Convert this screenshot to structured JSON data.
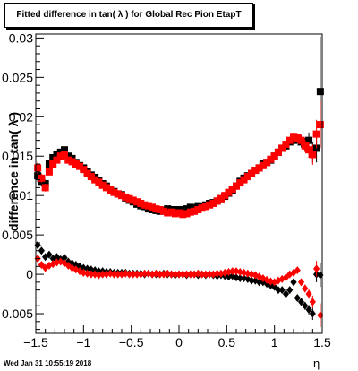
{
  "title": "Fitted difference in tan( λ ) for Global Rec Pion EtapT",
  "footer": "Wed Jan 31 10:55:19 2018",
  "chart_data": {
    "type": "scatter",
    "title": "Fitted difference in tan( λ ) for Global Rec Pion EtapT",
    "xlabel": "η",
    "ylabel": "difference in tan( λ )",
    "xlim": [
      -1.5,
      1.5
    ],
    "ylim": [
      -0.0075,
      0.0305
    ],
    "x_ticks": [
      -1.5,
      -1,
      -0.5,
      0,
      0.5,
      1,
      1.5
    ],
    "x_tick_labels": [
      "−1.5",
      "−1",
      "−0.5",
      "0",
      "0.5",
      "1",
      "1.5"
    ],
    "y_ticks": [
      -0.005,
      0,
      0.005,
      0.01,
      0.015,
      0.02,
      0.025,
      0.03
    ],
    "y_tick_labels": [
      "0.005",
      "0",
      "0.005",
      "0.01",
      "0.015",
      "0.02",
      "0.025",
      "0.03"
    ],
    "series": [
      {
        "color": "#000000",
        "marker": "square",
        "x": [
          -1.48,
          -1.44,
          -1.4,
          -1.36,
          -1.32,
          -1.28,
          -1.24,
          -1.2,
          -1.16,
          -1.12,
          -1.08,
          -1.04,
          -1.0,
          -0.96,
          -0.92,
          -0.88,
          -0.84,
          -0.8,
          -0.76,
          -0.72,
          -0.68,
          -0.64,
          -0.6,
          -0.56,
          -0.52,
          -0.48,
          -0.44,
          -0.4,
          -0.36,
          -0.32,
          -0.28,
          -0.24,
          -0.2,
          -0.16,
          -0.12,
          -0.08,
          -0.04,
          0.0,
          0.04,
          0.08,
          0.12,
          0.16,
          0.2,
          0.24,
          0.28,
          0.32,
          0.36,
          0.4,
          0.44,
          0.48,
          0.52,
          0.56,
          0.6,
          0.64,
          0.68,
          0.72,
          0.76,
          0.8,
          0.84,
          0.88,
          0.92,
          0.96,
          1.0,
          1.04,
          1.08,
          1.12,
          1.16,
          1.2,
          1.24,
          1.28,
          1.32,
          1.36,
          1.4,
          1.44,
          1.48
        ],
        "y": [
          0.0125,
          0.0118,
          0.0115,
          0.014,
          0.0148,
          0.0152,
          0.0155,
          0.0158,
          0.015,
          0.0147,
          0.0142,
          0.0138,
          0.0135,
          0.013,
          0.0126,
          0.0123,
          0.0119,
          0.0115,
          0.0112,
          0.0108,
          0.0105,
          0.0102,
          0.0101,
          0.0097,
          0.0094,
          0.0092,
          0.0089,
          0.0087,
          0.0086,
          0.0083,
          0.0082,
          0.0081,
          0.008,
          0.0081,
          0.0083,
          0.0082,
          0.008,
          0.0082,
          0.0081,
          0.0083,
          0.0085,
          0.0084,
          0.0087,
          0.0086,
          0.0088,
          0.009,
          0.0091,
          0.0093,
          0.0096,
          0.0099,
          0.0103,
          0.0107,
          0.0112,
          0.0118,
          0.0122,
          0.0125,
          0.0128,
          0.0132,
          0.0135,
          0.014,
          0.0142,
          0.0145,
          0.015,
          0.0155,
          0.016,
          0.0163,
          0.0168,
          0.017,
          0.0172,
          0.0168,
          0.0165,
          0.017,
          0.0155,
          0.016,
          0.0232
        ],
        "y_err": [
          0.0008,
          0.0006,
          0.0005,
          0.0004,
          0.0003,
          0.0003,
          0.0003,
          0.0003,
          0.0003,
          0.0003,
          0.0003,
          0.0003,
          0.0002,
          0.0002,
          0.0002,
          0.0002,
          0.0002,
          0.0002,
          0.0002,
          0.0002,
          0.0002,
          0.0002,
          0.0002,
          0.0002,
          0.0002,
          0.0002,
          0.0002,
          0.0002,
          0.0002,
          0.0002,
          0.0002,
          0.0002,
          0.0002,
          0.0002,
          0.0002,
          0.0002,
          0.0002,
          0.0002,
          0.0002,
          0.0002,
          0.0002,
          0.0002,
          0.0002,
          0.0002,
          0.0002,
          0.0002,
          0.0002,
          0.0002,
          0.0002,
          0.0002,
          0.0002,
          0.0002,
          0.0002,
          0.0002,
          0.0002,
          0.0002,
          0.0002,
          0.0002,
          0.0002,
          0.0003,
          0.0003,
          0.0003,
          0.0003,
          0.0003,
          0.0003,
          0.0004,
          0.0004,
          0.0005,
          0.0006,
          0.0007,
          0.0008,
          0.001,
          0.0013,
          0.0018,
          0.007
        ]
      },
      {
        "color": "#ff0000",
        "marker": "square",
        "x": [
          -1.48,
          -1.44,
          -1.4,
          -1.36,
          -1.32,
          -1.28,
          -1.24,
          -1.2,
          -1.16,
          -1.12,
          -1.08,
          -1.04,
          -1.0,
          -0.96,
          -0.92,
          -0.88,
          -0.84,
          -0.8,
          -0.76,
          -0.72,
          -0.68,
          -0.64,
          -0.6,
          -0.56,
          -0.52,
          -0.48,
          -0.44,
          -0.4,
          -0.36,
          -0.32,
          -0.28,
          -0.24,
          -0.2,
          -0.16,
          -0.12,
          -0.08,
          -0.04,
          0.0,
          0.04,
          0.08,
          0.12,
          0.16,
          0.2,
          0.24,
          0.28,
          0.32,
          0.36,
          0.4,
          0.44,
          0.48,
          0.52,
          0.56,
          0.6,
          0.64,
          0.68,
          0.72,
          0.76,
          0.8,
          0.84,
          0.88,
          0.92,
          0.96,
          1.0,
          1.04,
          1.08,
          1.12,
          1.16,
          1.2,
          1.24,
          1.28,
          1.32,
          1.36,
          1.4,
          1.44,
          1.48
        ],
        "y": [
          0.0135,
          0.0122,
          0.011,
          0.013,
          0.014,
          0.0145,
          0.015,
          0.0152,
          0.0145,
          0.0143,
          0.014,
          0.0137,
          0.0133,
          0.0128,
          0.0124,
          0.012,
          0.0117,
          0.0113,
          0.011,
          0.0107,
          0.0104,
          0.0102,
          0.01,
          0.0098,
          0.0096,
          0.0094,
          0.0092,
          0.009,
          0.0088,
          0.0087,
          0.0085,
          0.0083,
          0.0082,
          0.008,
          0.0078,
          0.0079,
          0.0077,
          0.0078,
          0.0076,
          0.0077,
          0.0079,
          0.008,
          0.0082,
          0.0084,
          0.0086,
          0.0088,
          0.009,
          0.0093,
          0.0096,
          0.01,
          0.0104,
          0.0108,
          0.0112,
          0.0116,
          0.012,
          0.0124,
          0.0128,
          0.0132,
          0.0135,
          0.0138,
          0.0142,
          0.0146,
          0.015,
          0.0155,
          0.016,
          0.0165,
          0.017,
          0.0175,
          0.0173,
          0.017,
          0.0163,
          0.0158,
          0.0152,
          0.0178,
          0.019
        ],
        "y_err": [
          0.0008,
          0.0006,
          0.0005,
          0.0004,
          0.0003,
          0.0003,
          0.0003,
          0.0003,
          0.0003,
          0.0003,
          0.0003,
          0.0003,
          0.0002,
          0.0002,
          0.0002,
          0.0002,
          0.0002,
          0.0002,
          0.0002,
          0.0002,
          0.0002,
          0.0002,
          0.0002,
          0.0002,
          0.0002,
          0.0002,
          0.0002,
          0.0002,
          0.0002,
          0.0002,
          0.0002,
          0.0002,
          0.0002,
          0.0002,
          0.0002,
          0.0002,
          0.0002,
          0.0002,
          0.0002,
          0.0002,
          0.0002,
          0.0002,
          0.0002,
          0.0002,
          0.0002,
          0.0002,
          0.0002,
          0.0002,
          0.0002,
          0.0002,
          0.0002,
          0.0002,
          0.0002,
          0.0002,
          0.0002,
          0.0002,
          0.0002,
          0.0002,
          0.0002,
          0.0003,
          0.0003,
          0.0003,
          0.0003,
          0.0003,
          0.0003,
          0.0004,
          0.0004,
          0.0005,
          0.0006,
          0.0007,
          0.0008,
          0.001,
          0.0013,
          0.0018,
          0.003
        ]
      },
      {
        "color": "#000000",
        "marker": "diamond",
        "x": [
          -1.48,
          -1.44,
          -1.4,
          -1.36,
          -1.32,
          -1.28,
          -1.24,
          -1.2,
          -1.16,
          -1.12,
          -1.08,
          -1.04,
          -1.0,
          -0.96,
          -0.92,
          -0.88,
          -0.84,
          -0.8,
          -0.76,
          -0.72,
          -0.68,
          -0.64,
          -0.6,
          -0.56,
          -0.52,
          -0.48,
          -0.44,
          -0.4,
          -0.36,
          -0.32,
          -0.28,
          -0.24,
          -0.2,
          -0.16,
          -0.12,
          -0.08,
          -0.04,
          0.0,
          0.04,
          0.08,
          0.12,
          0.16,
          0.2,
          0.24,
          0.28,
          0.32,
          0.36,
          0.4,
          0.44,
          0.48,
          0.52,
          0.56,
          0.6,
          0.64,
          0.68,
          0.72,
          0.76,
          0.8,
          0.84,
          0.88,
          0.92,
          0.96,
          1.0,
          1.04,
          1.08,
          1.12,
          1.16,
          1.2,
          1.24,
          1.28,
          1.32,
          1.36,
          1.4,
          1.44,
          1.48
        ],
        "y": [
          0.0037,
          0.003,
          0.0022,
          0.0025,
          0.002,
          0.0022,
          0.0019,
          0.0021,
          0.0016,
          0.0014,
          0.0012,
          0.001,
          0.0008,
          0.0007,
          0.0006,
          0.0005,
          0.0004,
          0.0004,
          0.0003,
          0.0003,
          0.0002,
          0.0002,
          0.0002,
          0.0002,
          0.0001,
          0.0001,
          0.0001,
          0.0001,
          0.0,
          0.0001,
          0.0,
          0.0,
          0.0,
          0.0001,
          0.0,
          0.0,
          -0.0001,
          0.0,
          0.0,
          -0.0001,
          0.0,
          0.0,
          -0.0001,
          0.0,
          -0.0001,
          0.0,
          -0.0001,
          -0.0002,
          -0.0001,
          -0.0002,
          -0.0003,
          -0.0002,
          -0.0004,
          -0.0005,
          -0.0005,
          -0.0006,
          -0.0008,
          -0.0008,
          -0.001,
          -0.001,
          -0.0012,
          -0.0014,
          -0.0016,
          -0.002,
          -0.002,
          -0.0025,
          -0.002,
          -0.001,
          -0.003,
          -0.0035,
          -0.004,
          -0.0045,
          -0.005,
          0.0,
          -0.0001
        ],
        "y_err": [
          0.0005,
          0.0004,
          0.0003,
          0.0003,
          0.0002,
          0.0002,
          0.0002,
          0.0002,
          0.0002,
          0.0002,
          0.0002,
          0.0002,
          0.0001,
          0.0001,
          0.0001,
          0.0001,
          0.0001,
          0.0001,
          0.0001,
          0.0001,
          0.0001,
          0.0001,
          0.0001,
          0.0001,
          0.0001,
          0.0001,
          0.0001,
          0.0001,
          0.0001,
          0.0001,
          0.0001,
          0.0001,
          0.0001,
          0.0001,
          0.0001,
          0.0001,
          0.0001,
          0.0001,
          0.0001,
          0.0001,
          0.0001,
          0.0001,
          0.0001,
          0.0001,
          0.0001,
          0.0001,
          0.0001,
          0.0001,
          0.0001,
          0.0001,
          0.0001,
          0.0001,
          0.0001,
          0.0001,
          0.0001,
          0.0001,
          0.0001,
          0.0001,
          0.0001,
          0.0002,
          0.0002,
          0.0002,
          0.0002,
          0.0002,
          0.0002,
          0.0002,
          0.0003,
          0.0003,
          0.0004,
          0.0004,
          0.0005,
          0.0006,
          0.0008,
          0.001,
          0.0015
        ]
      },
      {
        "color": "#ff0000",
        "marker": "diamond",
        "x": [
          -1.48,
          -1.44,
          -1.4,
          -1.36,
          -1.32,
          -1.28,
          -1.24,
          -1.2,
          -1.16,
          -1.12,
          -1.08,
          -1.04,
          -1.0,
          -0.96,
          -0.92,
          -0.88,
          -0.84,
          -0.8,
          -0.76,
          -0.72,
          -0.68,
          -0.64,
          -0.6,
          -0.56,
          -0.52,
          -0.48,
          -0.44,
          -0.4,
          -0.36,
          -0.32,
          -0.28,
          -0.24,
          -0.2,
          -0.16,
          -0.12,
          -0.08,
          -0.04,
          0.0,
          0.04,
          0.08,
          0.12,
          0.16,
          0.2,
          0.24,
          0.28,
          0.32,
          0.36,
          0.4,
          0.44,
          0.48,
          0.52,
          0.56,
          0.6,
          0.64,
          0.68,
          0.72,
          0.76,
          0.8,
          0.84,
          0.88,
          0.92,
          0.96,
          1.0,
          1.04,
          1.08,
          1.12,
          1.16,
          1.2,
          1.24,
          1.28,
          1.32,
          1.36,
          1.4,
          1.44,
          1.48
        ],
        "y": [
          0.002,
          0.0012,
          0.0008,
          0.0011,
          0.0013,
          0.0015,
          0.0016,
          0.0014,
          0.0011,
          0.0008,
          0.0006,
          0.0004,
          0.0002,
          0.0001,
          0.0,
          0.0,
          -0.0001,
          0.0,
          0.0,
          0.0001,
          0.0,
          0.0,
          0.0,
          0.0001,
          0.0,
          0.0,
          0.0,
          0.0,
          0.0001,
          0.0001,
          0.0,
          0.0001,
          0.0,
          0.0,
          0.0001,
          0.0,
          0.0,
          0.0,
          0.0,
          0.0,
          0.0,
          0.0,
          0.0001,
          0.0,
          0.0,
          0.0,
          0.0,
          0.0001,
          0.0001,
          0.0002,
          0.0003,
          0.0004,
          0.0004,
          0.0003,
          0.0002,
          0.0001,
          0.0,
          -0.0001,
          -0.0003,
          -0.0005,
          -0.0007,
          -0.0009,
          -0.001,
          -0.0008,
          -0.0006,
          -0.0004,
          0.0,
          0.0002,
          0.0005,
          -0.001,
          -0.0018,
          -0.0025,
          -0.0035,
          0.0007,
          -0.0052
        ],
        "y_err": [
          0.0005,
          0.0004,
          0.0003,
          0.0003,
          0.0002,
          0.0002,
          0.0002,
          0.0002,
          0.0002,
          0.0002,
          0.0002,
          0.0002,
          0.0001,
          0.0001,
          0.0001,
          0.0001,
          0.0001,
          0.0001,
          0.0001,
          0.0001,
          0.0001,
          0.0001,
          0.0001,
          0.0001,
          0.0001,
          0.0001,
          0.0001,
          0.0001,
          0.0001,
          0.0001,
          0.0001,
          0.0001,
          0.0001,
          0.0001,
          0.0001,
          0.0001,
          0.0001,
          0.0001,
          0.0001,
          0.0001,
          0.0001,
          0.0001,
          0.0001,
          0.0001,
          0.0001,
          0.0001,
          0.0001,
          0.0001,
          0.0001,
          0.0001,
          0.0001,
          0.0001,
          0.0001,
          0.0001,
          0.0001,
          0.0001,
          0.0001,
          0.0001,
          0.0001,
          0.0002,
          0.0002,
          0.0002,
          0.0002,
          0.0002,
          0.0002,
          0.0002,
          0.0003,
          0.0003,
          0.0004,
          0.0004,
          0.0005,
          0.0006,
          0.0008,
          0.001,
          0.0015
        ]
      }
    ]
  }
}
